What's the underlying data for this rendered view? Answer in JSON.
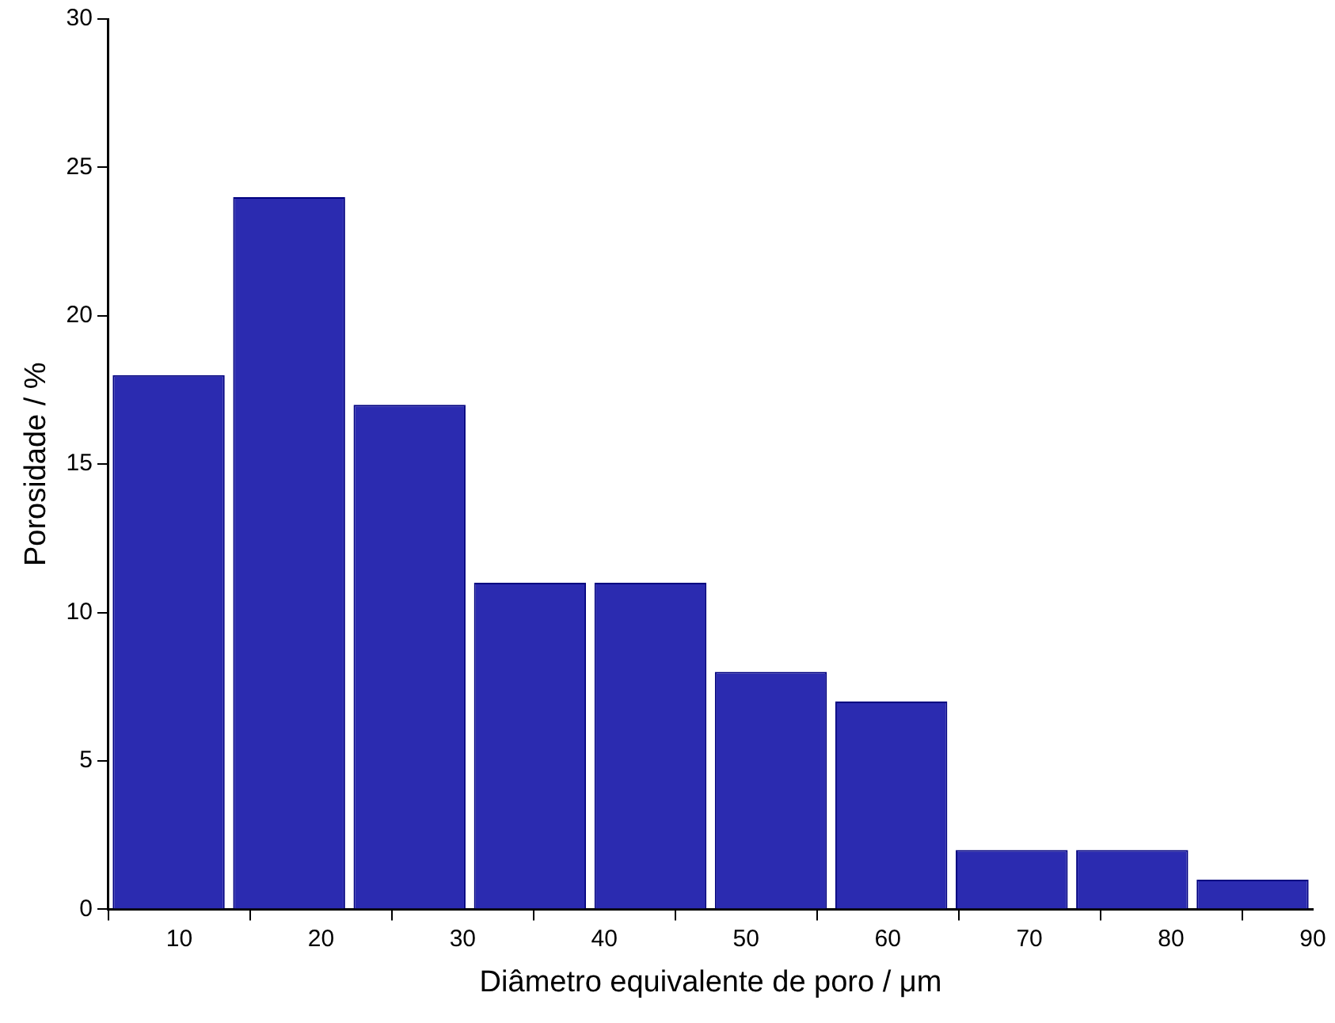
{
  "chart_data": {
    "type": "histogram",
    "xlabel": "Diâmetro equivalente de poro / μm",
    "ylabel": "Porosidade / %",
    "bins": [
      5,
      13.5,
      22,
      30.5,
      39,
      47.5,
      56,
      64.5,
      73,
      81.5,
      90
    ],
    "values": [
      18,
      24,
      17,
      11,
      11,
      8,
      7,
      2,
      2,
      1
    ],
    "color": "#2b2bb0",
    "xlim": [
      5,
      90
    ],
    "xticks": [
      10,
      20,
      30,
      40,
      50,
      60,
      70,
      80,
      90
    ],
    "ylim": [
      0,
      30
    ],
    "yticks": [
      0,
      5,
      10,
      15,
      20,
      25,
      30
    ],
    "grid": false,
    "legend": false
  }
}
